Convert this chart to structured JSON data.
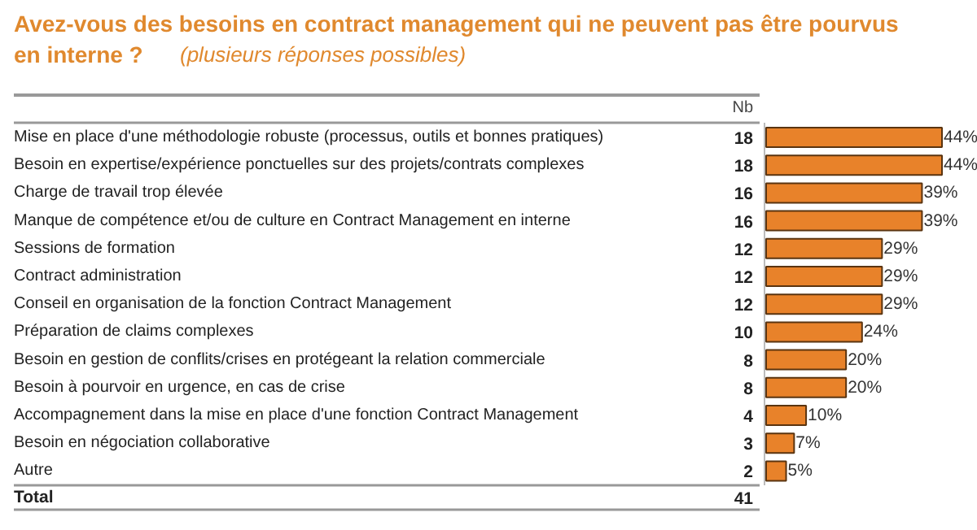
{
  "chart_data": {
    "type": "bar",
    "orientation": "horizontal",
    "title": "Avez-vous des besoins en contract management qui ne peuvent pas être pourvus en interne ?",
    "subtitle": "(plusieurs réponses possibles)",
    "categories": [
      "Mise en place d'une méthodologie robuste (processus, outils et bonnes pratiques)",
      "Besoin en expertise/expérience ponctuelles sur des projets/contrats complexes",
      "Charge de travail trop élevée",
      "Manque de compétence et/ou de culture en Contract Management en interne",
      "Sessions de formation",
      "Contract administration",
      "Conseil en organisation de la fonction Contract Management",
      "Préparation de claims complexes",
      "Besoin en gestion de conflits/crises en protégeant la relation commerciale",
      "Besoin à pourvoir en urgence, en cas de crise",
      "Accompagnement dans la mise en place d'une fonction Contract Management",
      "Besoin en négociation collaborative",
      "Autre"
    ],
    "values": [
      44,
      44,
      39,
      39,
      29,
      29,
      29,
      24,
      20,
      20,
      10,
      7,
      5
    ],
    "value_labels": [
      "44%",
      "44%",
      "39%",
      "39%",
      "29%",
      "29%",
      "29%",
      "24%",
      "20%",
      "20%",
      "10%",
      "7%",
      "5%"
    ],
    "data_labels": true,
    "color": "#e8822a",
    "annotations": [
      "Nb",
      "Total",
      "41",
      "18",
      "18",
      "16",
      "16",
      "12",
      "12",
      "12",
      "10",
      "8",
      "8",
      "4",
      "3",
      "2"
    ]
  }
}
